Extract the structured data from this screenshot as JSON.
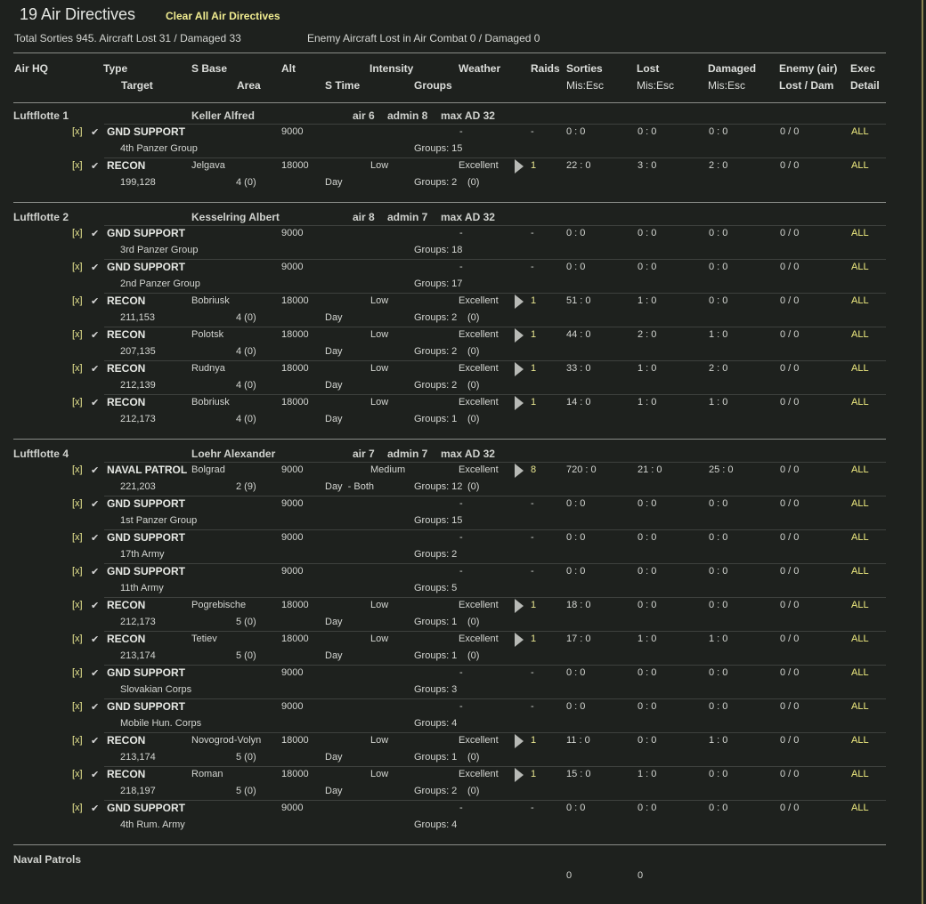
{
  "header": {
    "title": "19 Air Directives",
    "clear_all": "Clear All Air Directives",
    "summary": "Total Sorties 945. Aircraft Lost 31 / Damaged 33",
    "enemy_summary": "Enemy Aircraft Lost in Air Combat 0 / Damaged 0"
  },
  "columns": {
    "air_hq": "Air HQ",
    "type": "Type",
    "s_base": "S Base",
    "alt": "Alt",
    "intensity": "Intensity",
    "weather": "Weather",
    "raids": "Raids",
    "sorties": "Sorties",
    "lost": "Lost",
    "damaged": "Damaged",
    "enemy": "Enemy (air)",
    "exec": "Exec",
    "target": "Target",
    "area": "Area",
    "s_time": "S Time",
    "groups": "Groups",
    "sorties2": "Mis:Esc",
    "lost2": "Mis:Esc",
    "damaged2": "Mis:Esc",
    "enemy2": "Lost / Dam",
    "exec2": "Detail"
  },
  "colors": {
    "background": "#1e211e",
    "accent_yellow": "#f0ec80"
  },
  "icons": {
    "remove": "[x]",
    "check": "✔",
    "raid_arrow": "play-triangle"
  },
  "groups": [
    {
      "name": "Luftflotte 1",
      "commander": "Keller Alfred",
      "air": "air 6",
      "admin": "admin 8",
      "max_ad": "max AD 32",
      "rows": [
        {
          "type": "GND SUPPORT",
          "base": "",
          "alt": "9000",
          "intensity": "",
          "weather": "-",
          "raids": "-",
          "sorties": "0 : 0",
          "lost": "0 : 0",
          "damaged": "0 : 0",
          "enemy": "0 / 0",
          "exec": "ALL",
          "target": "4th Panzer Group",
          "area": "",
          "stime": "",
          "groups": "Groups: 15",
          "reserve": ""
        },
        {
          "type": "RECON",
          "base": "Jelgava",
          "alt": "18000",
          "intensity": "Low",
          "weather": "Excellent",
          "raids": "1",
          "sorties": "22 : 0",
          "lost": "3 : 0",
          "damaged": "2 : 0",
          "enemy": "0 / 0",
          "exec": "ALL",
          "target": "199,128",
          "area": "4 (0)",
          "stime": "Day",
          "groups": "Groups: 2",
          "reserve": "(0)"
        }
      ]
    },
    {
      "name": "Luftflotte 2",
      "commander": "Kesselring Albert",
      "air": "air 8",
      "admin": "admin 7",
      "max_ad": "max AD 32",
      "rows": [
        {
          "type": "GND SUPPORT",
          "base": "",
          "alt": "9000",
          "intensity": "",
          "weather": "-",
          "raids": "-",
          "sorties": "0 : 0",
          "lost": "0 : 0",
          "damaged": "0 : 0",
          "enemy": "0 / 0",
          "exec": "ALL",
          "target": "3rd Panzer Group",
          "area": "",
          "stime": "",
          "groups": "Groups: 18",
          "reserve": ""
        },
        {
          "type": "GND SUPPORT",
          "base": "",
          "alt": "9000",
          "intensity": "",
          "weather": "-",
          "raids": "-",
          "sorties": "0 : 0",
          "lost": "0 : 0",
          "damaged": "0 : 0",
          "enemy": "0 / 0",
          "exec": "ALL",
          "target": "2nd Panzer Group",
          "area": "",
          "stime": "",
          "groups": "Groups: 17",
          "reserve": ""
        },
        {
          "type": "RECON",
          "base": "Bobriusk",
          "alt": "18000",
          "intensity": "Low",
          "weather": "Excellent",
          "raids": "1",
          "sorties": "51 : 0",
          "lost": "1 : 0",
          "damaged": "0 : 0",
          "enemy": "0 / 0",
          "exec": "ALL",
          "target": "211,153",
          "area": "4 (0)",
          "stime": "Day",
          "groups": "Groups: 2",
          "reserve": "(0)"
        },
        {
          "type": "RECON",
          "base": "Polotsk",
          "alt": "18000",
          "intensity": "Low",
          "weather": "Excellent",
          "raids": "1",
          "sorties": "44 : 0",
          "lost": "2 : 0",
          "damaged": "1 : 0",
          "enemy": "0 / 0",
          "exec": "ALL",
          "target": "207,135",
          "area": "4 (0)",
          "stime": "Day",
          "groups": "Groups: 2",
          "reserve": "(0)"
        },
        {
          "type": "RECON",
          "base": "Rudnya",
          "alt": "18000",
          "intensity": "Low",
          "weather": "Excellent",
          "raids": "1",
          "sorties": "33 : 0",
          "lost": "1 : 0",
          "damaged": "2 : 0",
          "enemy": "0 / 0",
          "exec": "ALL",
          "target": "212,139",
          "area": "4 (0)",
          "stime": "Day",
          "groups": "Groups: 2",
          "reserve": "(0)"
        },
        {
          "type": "RECON",
          "base": "Bobriusk",
          "alt": "18000",
          "intensity": "Low",
          "weather": "Excellent",
          "raids": "1",
          "sorties": "14 : 0",
          "lost": "1 : 0",
          "damaged": "1 : 0",
          "enemy": "0 / 0",
          "exec": "ALL",
          "target": "212,173",
          "area": "4 (0)",
          "stime": "Day",
          "groups": "Groups: 1",
          "reserve": "(0)"
        }
      ]
    },
    {
      "name": "Luftflotte 4",
      "commander": "Loehr Alexander",
      "air": "air 7",
      "admin": "admin 7",
      "max_ad": "max AD 32",
      "rows": [
        {
          "type": "NAVAL PATROL",
          "base": "Bolgrad",
          "alt": "9000",
          "intensity": "Medium",
          "weather": "Excellent",
          "raids": "8",
          "sorties": "720 : 0",
          "lost": "21 : 0",
          "damaged": "25 : 0",
          "enemy": "0 / 0",
          "exec": "ALL",
          "target": "221,203",
          "area": "2 (9)",
          "stime": "Day  - Both",
          "groups": "Groups: 12",
          "reserve": "(0)"
        },
        {
          "type": "GND SUPPORT",
          "base": "",
          "alt": "9000",
          "intensity": "",
          "weather": "-",
          "raids": "-",
          "sorties": "0 : 0",
          "lost": "0 : 0",
          "damaged": "0 : 0",
          "enemy": "0 / 0",
          "exec": "ALL",
          "target": "1st Panzer Group",
          "area": "",
          "stime": "",
          "groups": "Groups: 15",
          "reserve": ""
        },
        {
          "type": "GND SUPPORT",
          "base": "",
          "alt": "9000",
          "intensity": "",
          "weather": "-",
          "raids": "-",
          "sorties": "0 : 0",
          "lost": "0 : 0",
          "damaged": "0 : 0",
          "enemy": "0 / 0",
          "exec": "ALL",
          "target": "17th Army",
          "area": "",
          "stime": "",
          "groups": "Groups: 2",
          "reserve": ""
        },
        {
          "type": "GND SUPPORT",
          "base": "",
          "alt": "9000",
          "intensity": "",
          "weather": "-",
          "raids": "-",
          "sorties": "0 : 0",
          "lost": "0 : 0",
          "damaged": "0 : 0",
          "enemy": "0 / 0",
          "exec": "ALL",
          "target": "11th Army",
          "area": "",
          "stime": "",
          "groups": "Groups: 5",
          "reserve": ""
        },
        {
          "type": "RECON",
          "base": "Pogrebische",
          "alt": "18000",
          "intensity": "Low",
          "weather": "Excellent",
          "raids": "1",
          "sorties": "18 : 0",
          "lost": "0 : 0",
          "damaged": "0 : 0",
          "enemy": "0 / 0",
          "exec": "ALL",
          "target": "212,173",
          "area": "5 (0)",
          "stime": "Day",
          "groups": "Groups: 1",
          "reserve": "(0)"
        },
        {
          "type": "RECON",
          "base": "Tetiev",
          "alt": "18000",
          "intensity": "Low",
          "weather": "Excellent",
          "raids": "1",
          "sorties": "17 : 0",
          "lost": "1 : 0",
          "damaged": "1 : 0",
          "enemy": "0 / 0",
          "exec": "ALL",
          "target": "213,174",
          "area": "5 (0)",
          "stime": "Day",
          "groups": "Groups: 1",
          "reserve": "(0)"
        },
        {
          "type": "GND SUPPORT",
          "base": "",
          "alt": "9000",
          "intensity": "",
          "weather": "-",
          "raids": "-",
          "sorties": "0 : 0",
          "lost": "0 : 0",
          "damaged": "0 : 0",
          "enemy": "0 / 0",
          "exec": "ALL",
          "target": "Slovakian Corps",
          "area": "",
          "stime": "",
          "groups": "Groups: 3",
          "reserve": ""
        },
        {
          "type": "GND SUPPORT",
          "base": "",
          "alt": "9000",
          "intensity": "",
          "weather": "-",
          "raids": "-",
          "sorties": "0 : 0",
          "lost": "0 : 0",
          "damaged": "0 : 0",
          "enemy": "0 / 0",
          "exec": "ALL",
          "target": "Mobile Hun. Corps",
          "area": "",
          "stime": "",
          "groups": "Groups: 4",
          "reserve": ""
        },
        {
          "type": "RECON",
          "base": "Novogrod-Volyn",
          "alt": "18000",
          "intensity": "Low",
          "weather": "Excellent",
          "raids": "1",
          "sorties": "11 : 0",
          "lost": "0 : 0",
          "damaged": "1 : 0",
          "enemy": "0 / 0",
          "exec": "ALL",
          "target": "213,174",
          "area": "5 (0)",
          "stime": "Day",
          "groups": "Groups: 1",
          "reserve": "(0)"
        },
        {
          "type": "RECON",
          "base": "Roman",
          "alt": "18000",
          "intensity": "Low",
          "weather": "Excellent",
          "raids": "1",
          "sorties": "15 : 0",
          "lost": "1 : 0",
          "damaged": "0 : 0",
          "enemy": "0 / 0",
          "exec": "ALL",
          "target": "218,197",
          "area": "5 (0)",
          "stime": "Day",
          "groups": "Groups: 2",
          "reserve": "(0)"
        },
        {
          "type": "GND SUPPORT",
          "base": "",
          "alt": "9000",
          "intensity": "",
          "weather": "-",
          "raids": "-",
          "sorties": "0 : 0",
          "lost": "0 : 0",
          "damaged": "0 : 0",
          "enemy": "0 / 0",
          "exec": "ALL",
          "target": "4th Rum. Army",
          "area": "",
          "stime": "",
          "groups": "Groups: 4",
          "reserve": ""
        }
      ]
    }
  ],
  "naval_patrols": {
    "label": "Naval Patrols",
    "sorties": "0",
    "lost": "0"
  }
}
